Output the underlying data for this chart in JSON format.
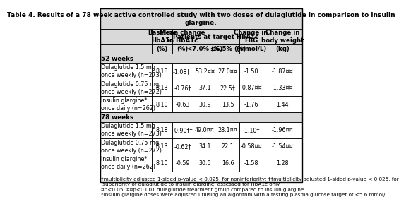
{
  "title": "Table 4. Results of a 78 week active controlled study with two doses of dulaglutide in comparison to insulin\nglargine.",
  "col_headers_row1": [
    "",
    "Baseline\nHbA1c",
    "Mean change\nin HbA1c",
    "Patients at target HbA1c",
    "",
    "Change in\nFBG",
    "Change in\nbody weight"
  ],
  "col_headers_row2": [
    "",
    "(%)",
    "(%)",
    "<7.0% (%)",
    "≤6.5% (%)",
    "(mmol/L)",
    "(kg)"
  ],
  "section1_label": "52 weeks",
  "section2_label": "78 weeks",
  "rows": [
    {
      "section": "52 weeks",
      "label": "Dulaglutide 1.5 mg\nonce weekly (n=273)",
      "baseline": "8.18",
      "mean_change": "-1.08††",
      "lt7": "53.2¤¤",
      "le65": "27.0¤¤",
      "fbg": "-1.50",
      "weight": "-1.87¤¤"
    },
    {
      "section": "52 weeks",
      "label": "Dulaglutide 0.75 mg\nonce weekly (n=272)",
      "baseline": "8.13",
      "mean_change": "-0.76†",
      "lt7": "37.1",
      "le65": "22.5†",
      "fbg": "-0.87¤¤",
      "weight": "-1.33¤¤"
    },
    {
      "section": "52 weeks",
      "label": "Insulin glargine*\nonce daily (n=262)",
      "baseline": "8.10",
      "mean_change": "-0.63",
      "lt7": "30.9",
      "le65": "13.5",
      "fbg": "-1.76",
      "weight": "1.44"
    },
    {
      "section": "78 weeks",
      "label": "Dulaglutide 1.5 mg\nonce weekly (n=273)",
      "baseline": "8.18",
      "mean_change": "-0.90††",
      "lt7": "49.0¤¤",
      "le65": "28.1¤¤",
      "fbg": "-1.10†",
      "weight": "-1.96¤¤"
    },
    {
      "section": "78 weeks",
      "label": "Dulaglutide 0.75 mg\nonce weekly (n=272)",
      "baseline": "8.13",
      "mean_change": "-0.62†",
      "lt7": "34.1",
      "le65": "22.1",
      "fbg": "-0.58¤¤",
      "weight": "-1.54¤¤"
    },
    {
      "section": "78 weeks",
      "label": "Insulin glargine*\nonce daily (n=262)",
      "baseline": "8.10",
      "mean_change": "-0.59",
      "lt7": "30.5",
      "le65": "16.6",
      "fbg": "-1.58",
      "weight": "1.28"
    }
  ],
  "footnotes": [
    "†multiplicity adjusted 1-sided p-value < 0.025, for noninferiority; ††multiplicity adjusted 1-sided p-value < 0.025, for",
    " superiority of dulaglutide to insulin glargine, assessed for HbA1c only",
    "¤p<0.05, ¤¤p<0.001 dulaglutide treatment group compared to insulin glargine",
    "*Insulin glargine doses were adjusted utilising an algorithm with a fasting plasma glucose target of <5.6 mmol/L"
  ],
  "bg_color_header": "#d9d9d9",
  "bg_color_section": "#d9d9d9",
  "bg_color_white": "#ffffff",
  "border_color": "#000000",
  "font_size_title": 6.5,
  "font_size_header": 6.2,
  "font_size_cell": 5.8,
  "font_size_footnote": 5.2
}
